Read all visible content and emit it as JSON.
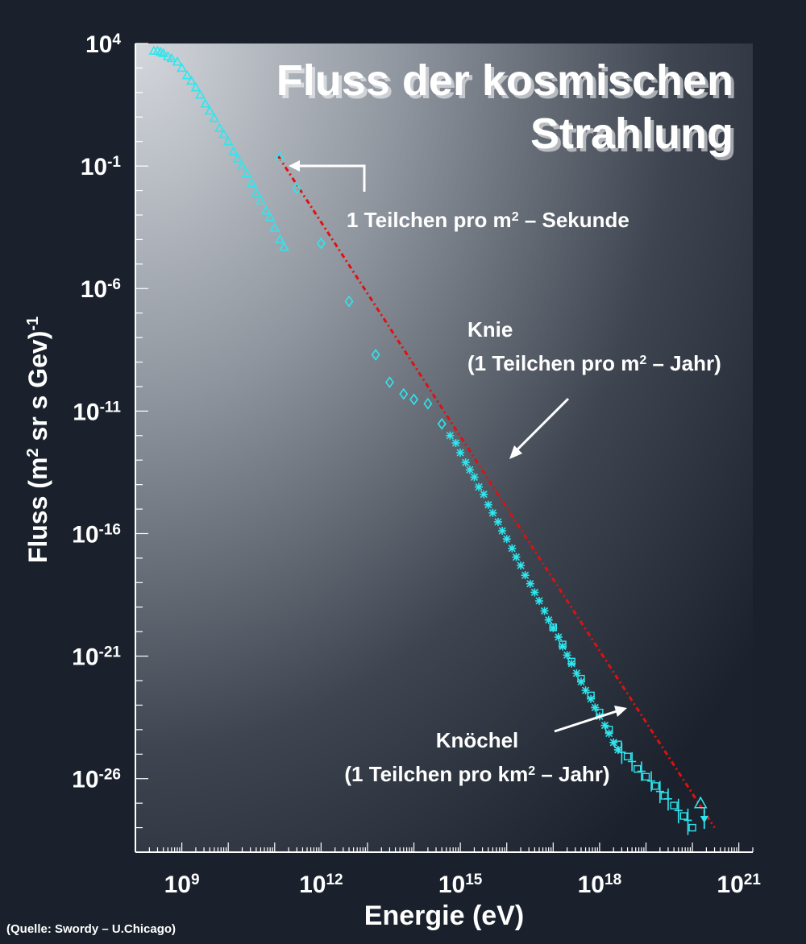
{
  "chart_data": {
    "type": "scatter",
    "title_lines": [
      "Fluss der kosmischen",
      "Strahlung"
    ],
    "xlabel": "Energie (eV)",
    "ylabel": {
      "base": "Fluss (m",
      "sup": "2",
      "rest": " sr s Gev)",
      "sup2": "-1"
    },
    "x_scale": "log",
    "y_scale": "log",
    "xlim": [
      100000000.0,
      2e+21
    ],
    "ylim": [
      1e-29,
      10000.0
    ],
    "x_ticks": [
      {
        "value": 1000000000.0,
        "base": "10",
        "exp": "9"
      },
      {
        "value": 1000000000000.0,
        "base": "10",
        "exp": "12"
      },
      {
        "value": 1000000000000000.0,
        "base": "10",
        "exp": "15"
      },
      {
        "value": 1e+18,
        "base": "10",
        "exp": "18"
      },
      {
        "value": 1e+21,
        "base": "10",
        "exp": "21"
      }
    ],
    "y_ticks": [
      {
        "value": 10000.0,
        "base": "10",
        "exp": "4"
      },
      {
        "value": 0.1,
        "base": "10",
        "exp": "-1"
      },
      {
        "value": 1e-06,
        "base": "10",
        "exp": "-6"
      },
      {
        "value": 1e-11,
        "base": "10",
        "exp": "-11"
      },
      {
        "value": 1e-16,
        "base": "10",
        "exp": "-16"
      },
      {
        "value": 1e-21,
        "base": "10",
        "exp": "-21"
      },
      {
        "value": 1e-26,
        "base": "10",
        "exp": "-26"
      }
    ],
    "grid": false,
    "colors": {
      "data": "#2ee6ee",
      "fit_line": "#e01010",
      "annotation": "#ffffff"
    },
    "series": [
      {
        "marker": "triangle",
        "points": [
          {
            "x": 250000000.0,
            "y": 5000
          },
          {
            "x": 300000000.0,
            "y": 5000
          },
          {
            "x": 350000000.0,
            "y": 4500
          },
          {
            "x": 400000000.0,
            "y": 4000
          },
          {
            "x": 500000000.0,
            "y": 3000
          },
          {
            "x": 600000000.0,
            "y": 2500
          },
          {
            "x": 800000000.0,
            "y": 1800
          },
          {
            "x": 1000000000.0,
            "y": 1000
          },
          {
            "x": 1300000000.0,
            "y": 500
          },
          {
            "x": 1600000000.0,
            "y": 300
          },
          {
            "x": 2000000000.0,
            "y": 160
          },
          {
            "x": 2500000000.0,
            "y": 80
          },
          {
            "x": 3200000000.0,
            "y": 35
          },
          {
            "x": 4000000000.0,
            "y": 18
          },
          {
            "x": 5000000000.0,
            "y": 9
          },
          {
            "x": 6500000000.0,
            "y": 3.5
          },
          {
            "x": 8000000000.0,
            "y": 2
          },
          {
            "x": 10000000000.0,
            "y": 1
          },
          {
            "x": 13000000000.0,
            "y": 0.4
          },
          {
            "x": 16000000000.0,
            "y": 0.2
          },
          {
            "x": 20000000000.0,
            "y": 0.1
          },
          {
            "x": 25000000000.0,
            "y": 0.05
          },
          {
            "x": 32000000000.0,
            "y": 0.02
          },
          {
            "x": 40000000000.0,
            "y": 0.008
          },
          {
            "x": 50000000000.0,
            "y": 0.004
          },
          {
            "x": 65000000000.0,
            "y": 0.0015
          },
          {
            "x": 80000000000.0,
            "y": 0.0008
          },
          {
            "x": 100000000000.0,
            "y": 0.0003
          },
          {
            "x": 130000000000.0,
            "y": 0.0001
          },
          {
            "x": 160000000000.0,
            "y": 5e-05
          },
          {
            "x": 130000000000.0,
            "y": 0.25
          }
        ]
      },
      {
        "marker": "diamond",
        "points": [
          {
            "x": 300000000000.0,
            "y": 0.012
          },
          {
            "x": 1000000000000.0,
            "y": 7e-05
          },
          {
            "x": 4000000000000.0,
            "y": 3e-07
          },
          {
            "x": 15000000000000.0,
            "y": 2e-09
          },
          {
            "x": 30000000000000.0,
            "y": 1.5e-10
          },
          {
            "x": 60000000000000.0,
            "y": 5e-11
          },
          {
            "x": 100000000000000.0,
            "y": 3e-11
          },
          {
            "x": 200000000000000.0,
            "y": 2e-11
          },
          {
            "x": 400000000000000.0,
            "y": 3e-12
          }
        ]
      },
      {
        "marker": "star",
        "points": [
          {
            "x": 600000000000000.0,
            "y": 1e-12
          },
          {
            "x": 800000000000000.0,
            "y": 5e-13
          },
          {
            "x": 1000000000000000.0,
            "y": 2e-13
          },
          {
            "x": 1300000000000000.0,
            "y": 8e-14
          },
          {
            "x": 1600000000000000.0,
            "y": 4e-14
          },
          {
            "x": 2000000000000000.0,
            "y": 2e-14
          },
          {
            "x": 2500000000000000.0,
            "y": 8e-15
          },
          {
            "x": 3200000000000000.0,
            "y": 4e-15
          },
          {
            "x": 4000000000000000.0,
            "y": 1.5e-15
          },
          {
            "x": 5000000000000000.0,
            "y": 7e-16
          },
          {
            "x": 6500000000000000.0,
            "y": 3e-16
          },
          {
            "x": 8000000000000000.0,
            "y": 1.3e-16
          },
          {
            "x": 1e+16,
            "y": 6e-17
          },
          {
            "x": 1.3e+16,
            "y": 2.5e-17
          },
          {
            "x": 1.6e+16,
            "y": 1.1e-17
          },
          {
            "x": 2e+16,
            "y": 5e-18
          },
          {
            "x": 2.5e+16,
            "y": 2e-18
          },
          {
            "x": 3.2e+16,
            "y": 9e-19
          },
          {
            "x": 4e+16,
            "y": 4e-19
          },
          {
            "x": 5e+16,
            "y": 1.8e-19
          },
          {
            "x": 6.5e+16,
            "y": 7e-20
          },
          {
            "x": 8e+16,
            "y": 3e-20
          },
          {
            "x": 1e+17,
            "y": 1.4e-20
          },
          {
            "x": 1.3e+17,
            "y": 6e-21
          },
          {
            "x": 1.6e+17,
            "y": 2.5e-21
          },
          {
            "x": 2e+17,
            "y": 1.1e-21
          },
          {
            "x": 2.5e+17,
            "y": 5e-22
          },
          {
            "x": 3.2e+17,
            "y": 2e-22
          },
          {
            "x": 4e+17,
            "y": 9e-23
          },
          {
            "x": 5e+17,
            "y": 4e-23
          },
          {
            "x": 6.5e+17,
            "y": 1.8e-23
          },
          {
            "x": 8e+17,
            "y": 8e-24
          },
          {
            "x": 1e+18,
            "y": 3.5e-24
          },
          {
            "x": 1.3e+18,
            "y": 1.5e-24
          },
          {
            "x": 1.6e+18,
            "y": 7e-25
          },
          {
            "x": 2e+18,
            "y": 3e-25
          },
          {
            "x": 2.5e+18,
            "y": 1.5e-25
          }
        ]
      },
      {
        "marker": "square",
        "points": [
          {
            "x": 1e+17,
            "y": 1.5e-20
          },
          {
            "x": 1.6e+17,
            "y": 3e-21
          },
          {
            "x": 2.5e+17,
            "y": 6e-22
          },
          {
            "x": 4e+17,
            "y": 1.2e-22
          },
          {
            "x": 6.5e+17,
            "y": 2.5e-23
          },
          {
            "x": 1e+18,
            "y": 5e-24
          },
          {
            "x": 1.6e+18,
            "y": 1e-24
          },
          {
            "x": 2.5e+18,
            "y": 2.5e-25
          },
          {
            "x": 4e+18,
            "y": 8e-26
          },
          {
            "x": 6.5e+18,
            "y": 2.5e-26
          },
          {
            "x": 1e+19,
            "y": 1.2e-26
          },
          {
            "x": 1.6e+19,
            "y": 5e-27
          },
          {
            "x": 2.5e+19,
            "y": 2e-27
          },
          {
            "x": 4e+19,
            "y": 8e-28
          },
          {
            "x": 6.5e+19,
            "y": 3e-28
          },
          {
            "x": 1e+20,
            "y": 1e-28
          }
        ]
      },
      {
        "marker": "errorbar",
        "points": [
          {
            "x": 3e+18,
            "y": 1.2e-25,
            "lo": 4e-26,
            "hi": 3e-25
          },
          {
            "x": 5e+18,
            "y": 5e-26,
            "lo": 2e-26,
            "hi": 1.2e-25
          },
          {
            "x": 8e+18,
            "y": 2e-26,
            "lo": 8e-27,
            "hi": 5e-26
          },
          {
            "x": 1.3e+19,
            "y": 8e-27,
            "lo": 3e-27,
            "hi": 2e-26
          },
          {
            "x": 2e+19,
            "y": 3e-27,
            "lo": 1e-27,
            "hi": 8e-27
          },
          {
            "x": 3e+19,
            "y": 1.5e-27,
            "lo": 5e-28,
            "hi": 4e-27
          },
          {
            "x": 5e+19,
            "y": 5e-28,
            "lo": 1.5e-28,
            "hi": 1.5e-27
          },
          {
            "x": 8e+19,
            "y": 2e-28,
            "lo": 5e-29,
            "hi": 6e-28
          }
        ]
      },
      {
        "marker": "open-triangle",
        "points": [
          {
            "x": 1.5e+20,
            "y": 1e-27
          }
        ]
      },
      {
        "marker": "arrow-down",
        "points": [
          {
            "x": 1.8e+20,
            "y": 3e-28
          }
        ]
      }
    ],
    "fit_line": [
      {
        "x": 120000000000.0,
        "y": 0.25
      },
      {
        "x": 3e+20,
        "y": 1e-28
      }
    ],
    "annotations": [
      {
        "label": "1 Teilchen pro m",
        "sup": "2",
        "rest": " – Sekunde"
      },
      {
        "label": "Knie"
      },
      {
        "label": "(1 Teilchen pro m",
        "sup": "2",
        "rest": " – Jahr)"
      },
      {
        "label": "Knöchel"
      },
      {
        "label": "(1 Teilchen pro km",
        "sup": "2",
        "rest": " – Jahr)"
      }
    ]
  },
  "source_note": "(Quelle: Swordy – U.Chicago)"
}
